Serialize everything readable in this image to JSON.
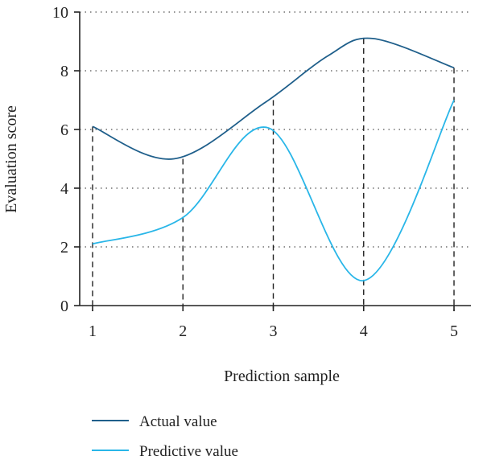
{
  "chart_data": {
    "type": "line",
    "xlabel": "Prediction sample",
    "ylabel": "Evaluation score",
    "x": [
      1,
      2,
      3,
      4,
      5
    ],
    "xticks": [
      "1",
      "2",
      "3",
      "4",
      "5"
    ],
    "yticks": [
      "0",
      "2",
      "4",
      "6",
      "8",
      "10"
    ],
    "xlim": [
      1,
      5
    ],
    "ylim": [
      0,
      10
    ],
    "grid": "horizontal dotted",
    "legend_position": "bottom-left",
    "series": [
      {
        "name": "Actual value",
        "values": [
          6.1,
          5.0,
          7.0,
          9.1,
          8.1
        ],
        "color": "#1f5f8b",
        "curve_x": [
          1,
          1.9,
          2.9,
          3.6,
          4.1,
          5
        ],
        "curve_y": [
          6.1,
          5.0,
          6.9,
          8.5,
          9.1,
          8.1
        ]
      },
      {
        "name": "Predictive value",
        "values": [
          2.1,
          3.0,
          6.0,
          0.9,
          7.0
        ],
        "color": "#29b6e8",
        "curve_x": [
          1,
          2,
          2.95,
          4.0,
          5
        ],
        "curve_y": [
          2.1,
          3.0,
          6.05,
          0.85,
          7.0
        ]
      }
    ]
  }
}
